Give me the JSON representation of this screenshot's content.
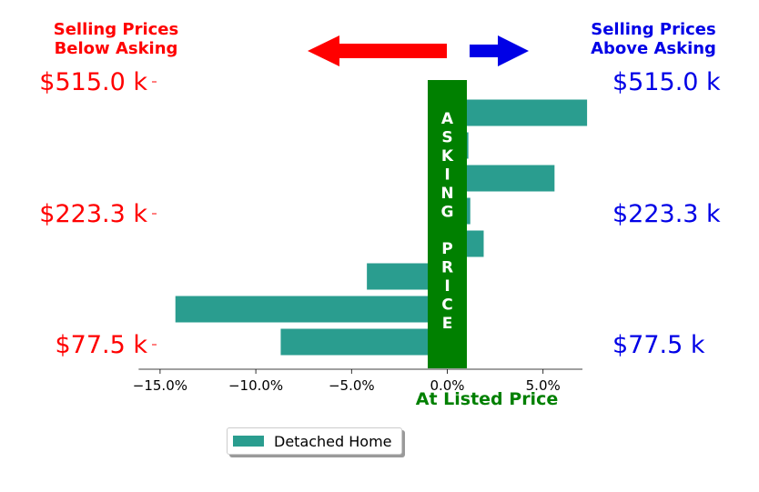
{
  "header": {
    "left_line1": "Selling Prices",
    "left_line2": "Below Asking",
    "right_line1": "Selling Prices",
    "right_line2": "Above Asking"
  },
  "colors": {
    "below": "#ff0000",
    "above": "#0000e6",
    "asking": "#008000",
    "bar": "#2a9d8f"
  },
  "chart_data": {
    "type": "bar",
    "orientation": "horizontal",
    "series": [
      {
        "name": "Detached Home",
        "values": [
          -8.7,
          -14.2,
          -4.2,
          1.9,
          1.2,
          5.6,
          1.1,
          7.3
        ]
      }
    ],
    "xlim": [
      -16.5,
      9.5
    ],
    "x_ticks": [
      -15,
      -10,
      -5,
      0,
      5
    ],
    "x_tick_labels": [
      "−15.0%",
      "−10.0%",
      "−5.0%",
      "0.0%",
      "5.0%"
    ],
    "xlabel": "At Listed Price",
    "y_tick_labels": [
      "$77.5 k",
      "$223.3 k",
      "$515.0 k"
    ],
    "asking_band_label": "ASKING PRICE",
    "legend_position": "bottom-center"
  }
}
